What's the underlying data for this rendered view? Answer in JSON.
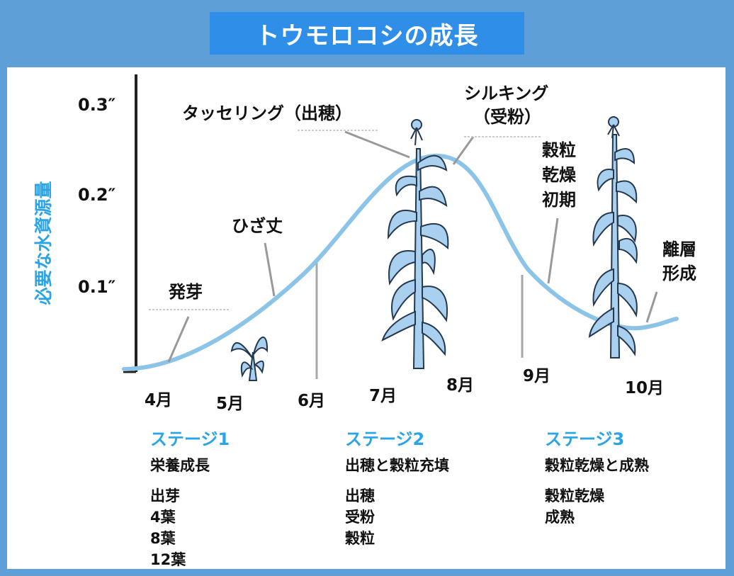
{
  "title": "トウモロコシの成長",
  "colors": {
    "frame": "#5d9fd6",
    "title_bg": "#2f8ee8",
    "curve": "#8cc4e8",
    "accent": "#2aa4e6"
  },
  "chart_data": {
    "type": "line",
    "ylabel": "必要な水資源量",
    "y_ticks": [
      "0.1″",
      "0.2″",
      "0.3″"
    ],
    "x_labels": [
      "4月",
      "5月",
      "6月",
      "7月",
      "8月",
      "9月",
      "10月"
    ],
    "series": [
      {
        "name": "必要な水資源量",
        "x": [
          "4月",
          "5月",
          "6月",
          "7月",
          "8月",
          "9月",
          "10月"
        ],
        "values": [
          0.01,
          0.06,
          0.12,
          0.22,
          0.22,
          0.1,
          0.05
        ]
      }
    ],
    "annotations": {
      "germination": "発芽",
      "knee_high": "ひざ丈",
      "tasseling": "タッセリング（出穂）",
      "silking_1": "シルキング",
      "silking_2": "（受粉）",
      "grain_dry_1": "穀粒",
      "grain_dry_2": "乾燥",
      "grain_dry_3": "初期",
      "abscission_1": "離層",
      "abscission_2": "形成"
    }
  },
  "stages": [
    {
      "heading": "ステージ1",
      "subtitle": "栄養成長",
      "items": [
        "出芽",
        "4葉",
        "8葉",
        "12葉"
      ]
    },
    {
      "heading": "ステージ2",
      "subtitle": "出穂と穀粒充填",
      "items": [
        "出穂",
        "受粉",
        "穀粒"
      ]
    },
    {
      "heading": "ステージ3",
      "subtitle": "穀粒乾燥と成熟",
      "items": [
        "穀粒乾燥",
        "成熟"
      ]
    }
  ],
  "plant_icon": "corn-plant-icon",
  "seedling_icon": "seedling-icon"
}
